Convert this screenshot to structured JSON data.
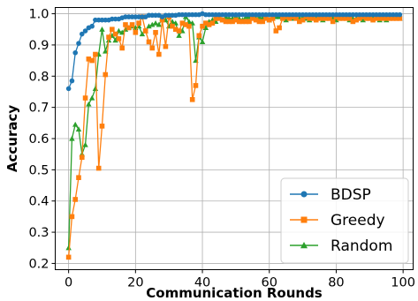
{
  "chart_data": {
    "type": "line",
    "xlabel": "Communication Rounds",
    "ylabel": "Accuracy",
    "xlim": [
      -4,
      103
    ],
    "ylim": [
      0.18,
      1.02
    ],
    "xticks": [
      0,
      20,
      40,
      60,
      80,
      100
    ],
    "yticks": [
      0.2,
      0.3,
      0.4,
      0.5,
      0.6,
      0.7,
      0.8,
      0.9,
      1.0
    ],
    "xtick_labels": [
      "0",
      "20",
      "40",
      "60",
      "80",
      "100"
    ],
    "ytick_labels": [
      "0.2",
      "0.3",
      "0.4",
      "0.5",
      "0.6",
      "0.7",
      "0.8",
      "0.9",
      "1.0"
    ],
    "grid": true,
    "legend_position": "bottom-right",
    "x": [
      0,
      1,
      2,
      3,
      4,
      5,
      6,
      7,
      8,
      9,
      10,
      11,
      12,
      13,
      14,
      15,
      16,
      17,
      18,
      19,
      20,
      21,
      22,
      23,
      24,
      25,
      26,
      27,
      28,
      29,
      30,
      31,
      32,
      33,
      34,
      35,
      36,
      37,
      38,
      39,
      40,
      41,
      42,
      43,
      44,
      45,
      46,
      47,
      48,
      49,
      50,
      51,
      52,
      53,
      54,
      55,
      56,
      57,
      58,
      59,
      60,
      61,
      62,
      63,
      64,
      65,
      66,
      67,
      68,
      69,
      70,
      71,
      72,
      73,
      74,
      75,
      76,
      77,
      78,
      79,
      80,
      81,
      82,
      83,
      84,
      85,
      86,
      87,
      88,
      89,
      90,
      91,
      92,
      93,
      94,
      95,
      96,
      97,
      98,
      99
    ],
    "series": [
      {
        "name": "BDSP",
        "color": "#1f77b4",
        "marker": "circle",
        "values": [
          0.76,
          0.785,
          0.875,
          0.905,
          0.935,
          0.945,
          0.955,
          0.96,
          0.98,
          0.98,
          0.98,
          0.98,
          0.98,
          0.983,
          0.983,
          0.983,
          0.987,
          0.99,
          0.99,
          0.99,
          0.99,
          0.99,
          0.99,
          0.99,
          0.995,
          0.995,
          0.995,
          0.995,
          0.99,
          0.995,
          0.995,
          0.995,
          0.995,
          0.997,
          0.997,
          0.997,
          0.997,
          0.997,
          0.997,
          0.997,
          1.0,
          0.997,
          0.997,
          0.997,
          0.997,
          0.997,
          0.997,
          0.997,
          0.997,
          0.997,
          0.997,
          0.997,
          0.997,
          0.997,
          0.997,
          0.997,
          0.997,
          0.997,
          0.997,
          0.997,
          0.997,
          0.997,
          0.997,
          0.997,
          0.997,
          0.997,
          0.997,
          0.997,
          0.997,
          0.997,
          0.997,
          0.997,
          0.997,
          0.997,
          0.997,
          0.997,
          0.997,
          0.997,
          0.997,
          0.997,
          0.997,
          0.997,
          0.997,
          0.997,
          0.997,
          0.997,
          0.997,
          0.997,
          0.997,
          0.997,
          0.997,
          0.997,
          0.997,
          0.997,
          0.997,
          0.997,
          0.997,
          0.997,
          0.997,
          0.997
        ]
      },
      {
        "name": "Greedy",
        "color": "#ff7f0e",
        "marker": "square",
        "values": [
          0.22,
          0.35,
          0.405,
          0.475,
          0.54,
          0.73,
          0.855,
          0.85,
          0.87,
          0.505,
          0.64,
          0.805,
          0.925,
          0.95,
          0.935,
          0.92,
          0.89,
          0.965,
          0.955,
          0.965,
          0.94,
          0.97,
          0.99,
          0.945,
          0.91,
          0.89,
          0.94,
          0.87,
          0.98,
          0.895,
          0.99,
          0.96,
          0.95,
          0.945,
          0.97,
          0.965,
          0.96,
          0.725,
          0.77,
          0.93,
          0.96,
          0.97,
          0.965,
          0.97,
          0.985,
          0.985,
          0.98,
          0.975,
          0.975,
          0.975,
          0.98,
          0.975,
          0.975,
          0.975,
          0.975,
          0.985,
          0.98,
          0.975,
          0.975,
          0.985,
          0.98,
          0.985,
          0.945,
          0.955,
          0.985,
          0.99,
          0.985,
          0.99,
          0.985,
          0.975,
          0.98,
          0.99,
          0.985,
          0.985,
          0.98,
          0.985,
          0.985,
          0.985,
          0.985,
          0.975,
          0.99,
          0.985,
          0.985,
          0.985,
          0.985,
          0.975,
          0.98,
          0.985,
          0.99,
          0.985,
          0.985,
          0.98,
          0.985,
          0.985,
          0.985,
          0.985,
          0.985,
          0.985,
          0.985,
          0.985
        ]
      },
      {
        "name": "Random",
        "color": "#2ca02c",
        "marker": "triangle",
        "values": [
          0.25,
          0.6,
          0.645,
          0.63,
          0.55,
          0.58,
          0.71,
          0.73,
          0.76,
          0.87,
          0.95,
          0.88,
          0.915,
          0.93,
          0.915,
          0.945,
          0.94,
          0.95,
          0.955,
          0.96,
          0.955,
          0.96,
          0.935,
          0.945,
          0.96,
          0.965,
          0.97,
          0.965,
          0.985,
          0.98,
          0.96,
          0.975,
          0.97,
          0.93,
          0.945,
          0.99,
          0.975,
          0.97,
          0.85,
          0.925,
          0.91,
          0.955,
          0.975,
          0.98,
          0.975,
          0.99,
          0.98,
          0.99,
          0.985,
          0.985,
          0.99,
          0.985,
          0.98,
          0.99,
          0.99,
          0.985,
          0.985,
          0.99,
          0.985,
          0.985,
          0.98,
          0.985,
          0.99,
          0.99,
          0.985,
          0.98,
          0.99,
          0.985,
          0.985,
          0.985,
          0.99,
          0.985,
          0.98,
          0.985,
          0.985,
          0.99,
          0.98,
          0.985,
          0.985,
          0.985,
          0.98,
          0.985,
          0.985,
          0.985,
          0.98,
          0.985,
          0.985,
          0.985,
          0.98,
          0.985,
          0.985,
          0.985,
          0.985,
          0.98,
          0.985,
          0.98,
          0.985,
          0.985,
          0.985,
          0.985
        ]
      }
    ]
  }
}
